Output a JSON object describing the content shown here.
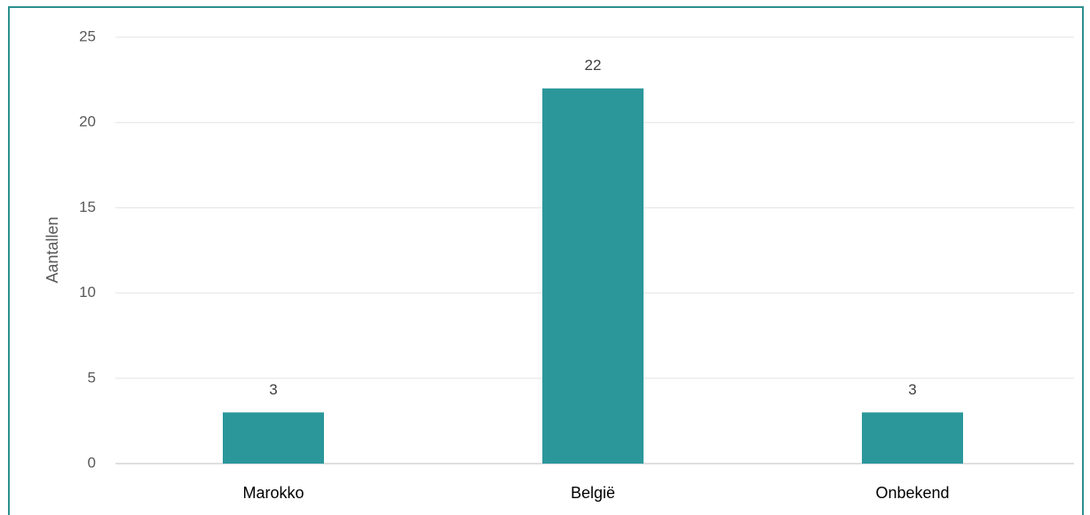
{
  "chart_data": {
    "type": "bar",
    "y_label": "Aantallen",
    "categories": [
      "Marokko",
      "België",
      "Onbekend"
    ],
    "values": [
      3,
      22,
      3
    ],
    "color": "#2b979b",
    "ylim": [
      0,
      25
    ],
    "yticks": [
      0,
      5,
      10,
      15,
      20,
      25
    ],
    "grid": true,
    "data_labels": true
  }
}
